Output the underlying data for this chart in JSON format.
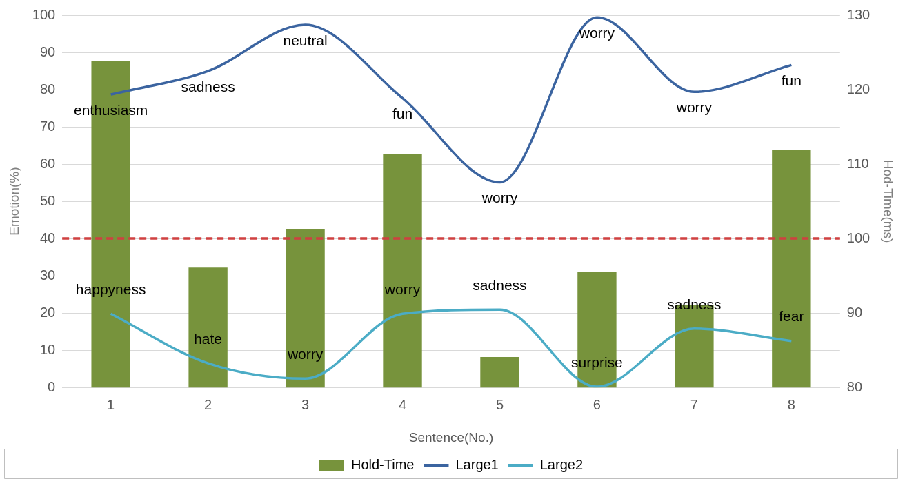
{
  "chart_data": {
    "type": "bar",
    "xlabel": "Sentence(No.)",
    "ylabel": "Emotion(%)",
    "y2label": "Hod-Time(ms)",
    "categories": [
      "1",
      "2",
      "3",
      "4",
      "5",
      "6",
      "7",
      "8"
    ],
    "series": [
      {
        "name": "Hold-Time",
        "axis": "y2",
        "color": "#77933c",
        "values": [
          123.8,
          96.1,
          101.3,
          111.4,
          84.1,
          95.5,
          91.1,
          111.9
        ]
      },
      {
        "name": "Large1",
        "type": "line",
        "color": "#3b64a0",
        "values": [
          78.7,
          85.0,
          97.4,
          77.7,
          55.1,
          99.4,
          79.4,
          86.6
        ],
        "value_labels": [
          "enthusiasm",
          "sadness",
          "neutral",
          "fun",
          "worry",
          "worry",
          "worry",
          "fun"
        ]
      },
      {
        "name": "Large2",
        "type": "line",
        "color": "#4bacc6",
        "values": [
          19.8,
          6.5,
          2.4,
          19.8,
          20.9,
          0.2,
          15.8,
          12.5
        ],
        "value_labels": [
          "happyness",
          "hate",
          "worry",
          "worry",
          "sadness",
          "surprise",
          "sadness",
          "fear"
        ]
      }
    ],
    "ylim": [
      0,
      100
    ],
    "yticks": [
      0,
      10,
      20,
      30,
      40,
      50,
      60,
      70,
      80,
      90,
      100
    ],
    "y2lim": [
      80,
      130
    ],
    "y2ticks": [
      80,
      90,
      100,
      110,
      120,
      130
    ],
    "ref_lines": [
      {
        "axis": "y",
        "value": 40,
        "color": "#d04040",
        "line_style": "dashed"
      }
    ],
    "grid": "y",
    "legend": "bottom",
    "marker": "none",
    "line_style": "solid"
  }
}
